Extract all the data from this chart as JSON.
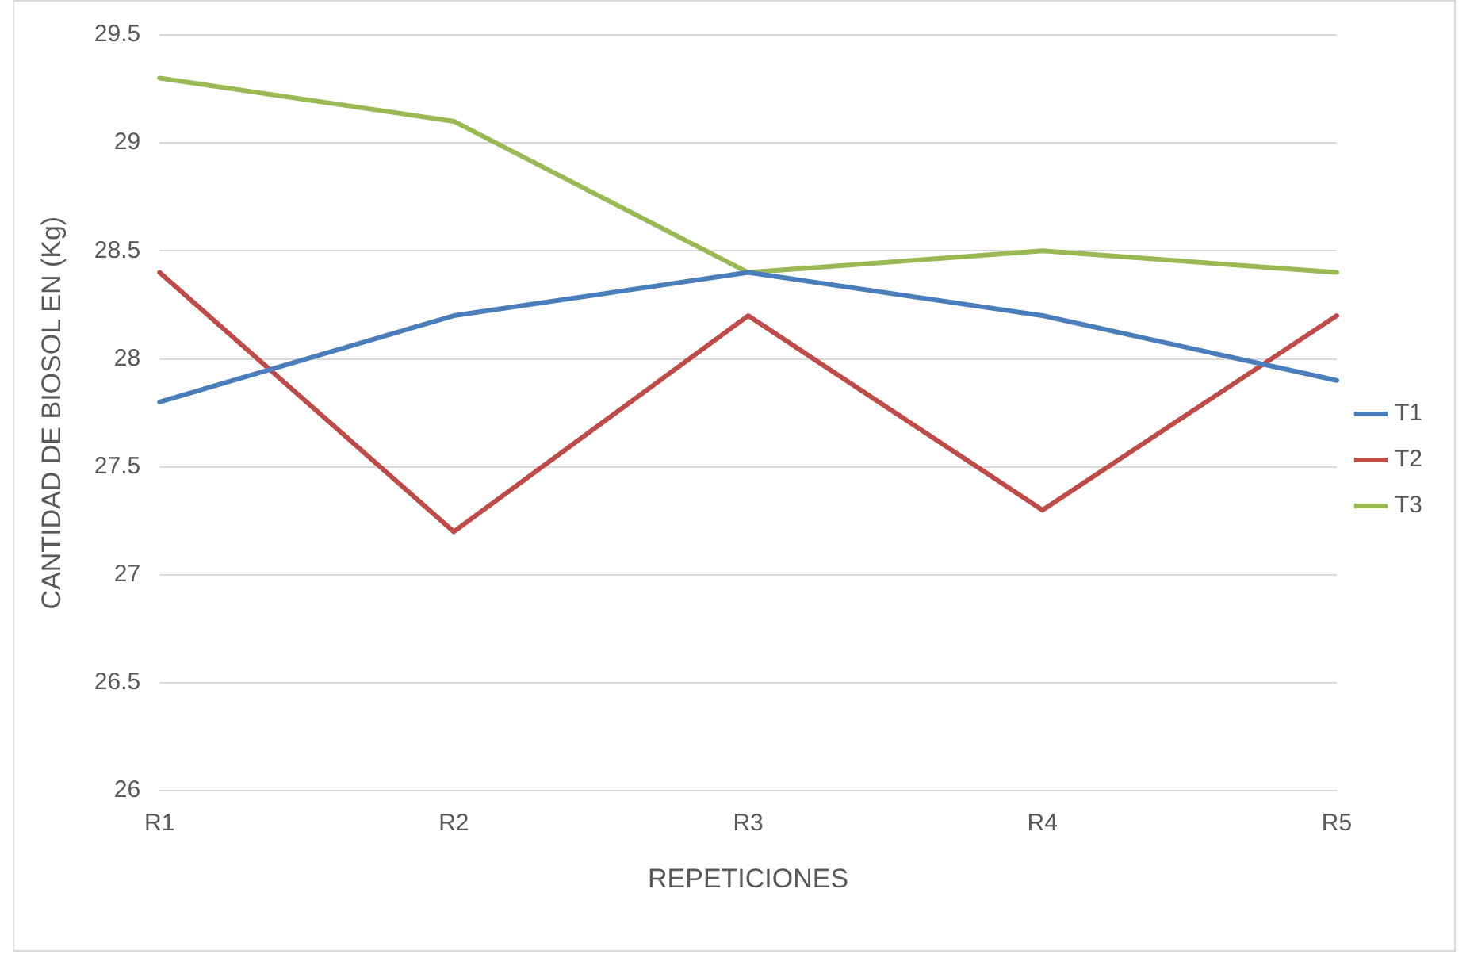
{
  "chart_data": {
    "type": "line",
    "xlabel": "REPETICIONES",
    "ylabel": "CANTIDAD DE BIOSOL EN (Kg)",
    "categories": [
      "R1",
      "R2",
      "R3",
      "R4",
      "R5"
    ],
    "series": [
      {
        "name": "T1",
        "color": "#4a7ebb",
        "values": [
          27.8,
          28.2,
          28.4,
          28.2,
          27.9
        ]
      },
      {
        "name": "T2",
        "color": "#be4b48",
        "values": [
          28.4,
          27.2,
          28.2,
          27.3,
          28.2
        ]
      },
      {
        "name": "T3",
        "color": "#98b954",
        "values": [
          29.3,
          29.1,
          28.4,
          28.5,
          28.4
        ]
      }
    ],
    "ylim": [
      26,
      29.5
    ],
    "yticks": [
      26,
      26.5,
      27,
      27.5,
      28,
      28.5,
      29,
      29.5
    ],
    "grid": "y",
    "legend": "right",
    "marker": "none",
    "line_style": "solid"
  }
}
